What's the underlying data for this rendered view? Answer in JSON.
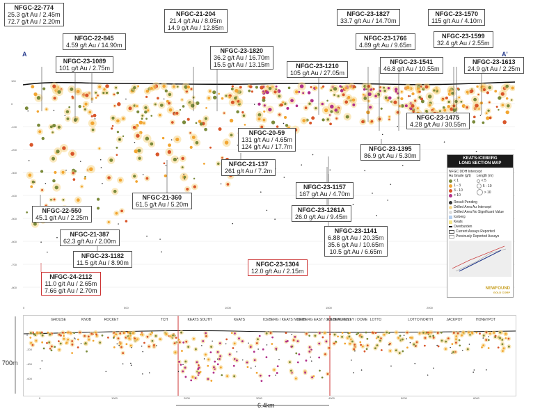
{
  "section_ends": {
    "left": "A",
    "right": "A'"
  },
  "annotations": [
    {
      "id": "NFGC-22-774",
      "lines": [
        "25.3 g/t Au / 2.45m",
        "72.7 g/t Au / 2.20m"
      ]
    },
    {
      "id": "NFGC-22-845",
      "lines": [
        "4.59 g/t Au / 14.90m"
      ]
    },
    {
      "id": "NFGC-23-1089",
      "lines": [
        "101 g/t Au / 2.75m"
      ]
    },
    {
      "id": "NFGC-21-204",
      "lines": [
        "21.4 g/t Au / 8.05m",
        "14.9 g/t Au / 12.85m"
      ]
    },
    {
      "id": "NFGC-23-1820",
      "lines": [
        "36.2 g/t Au / 16.70m",
        "15.5 g/t Au / 13.15m"
      ]
    },
    {
      "id": "NFGC-23-1210",
      "lines": [
        "105 g/t Au / 27.05m"
      ]
    },
    {
      "id": "NFGC-23-1827",
      "lines": [
        "33.7 g/t Au / 14.70m"
      ]
    },
    {
      "id": "NFGC-23-1570",
      "lines": [
        "115 g/t Au / 4.10m"
      ]
    },
    {
      "id": "NFGC-23-1766",
      "lines": [
        "4.89 g/t Au / 9.65m"
      ]
    },
    {
      "id": "NFGC-23-1599",
      "lines": [
        "32.4 g/t Au / 2.55m"
      ]
    },
    {
      "id": "NFGC-23-1541",
      "lines": [
        "46.8 g/t Au / 10.55m"
      ]
    },
    {
      "id": "NFGC-23-1613",
      "lines": [
        "24.9 g/t Au / 2.25m"
      ]
    },
    {
      "id": "NFGC-23-1475",
      "lines": [
        "4.28 g/t Au / 30.55m"
      ]
    },
    {
      "id": "NFGC-20-59",
      "lines": [
        "131 g/t Au / 4.65m",
        "124 g/t Au / 17.7m"
      ]
    },
    {
      "id": "NFGC-23-1395",
      "lines": [
        "86.9 g/t Au / 5.30m"
      ]
    },
    {
      "id": "NFGC-21-137",
      "lines": [
        "261 g/t Au / 7.2m"
      ]
    },
    {
      "id": "NFGC-21-360",
      "lines": [
        "61.5 g/t Au / 5.20m"
      ]
    },
    {
      "id": "NFGC-23-1157",
      "lines": [
        "167 g/t Au / 4.70m"
      ]
    },
    {
      "id": "NFGC-23-1261A",
      "lines": [
        "26.0 g/t Au / 9.45m"
      ]
    },
    {
      "id": "NFGC-22-550",
      "lines": [
        "45.1 g/t Au / 2.25m"
      ]
    },
    {
      "id": "NFGC-21-387",
      "lines": [
        "62.3 g/t Au / 2.00m"
      ]
    },
    {
      "id": "NFGC-23-1141",
      "lines": [
        "6.88 g/t Au / 20.35m",
        "35.6 g/t Au / 10.65m",
        "10.5 g/t Au / 6.65m"
      ]
    },
    {
      "id": "NFGC-23-1182",
      "lines": [
        "11.5 g/t Au / 8.90m"
      ]
    },
    {
      "id": "NFGC-23-1304",
      "lines": [
        "12.0 g/t Au / 2.15m"
      ]
    },
    {
      "id": "NFGC-24-2112",
      "lines": [
        "11.0 g/t Au / 2.65m",
        "7.66 g/t Au / 2.70m"
      ]
    }
  ],
  "legend": {
    "title_1": "KEATS-ICEBERG",
    "title_2": "LONG SECTION MAP",
    "subtitle": "NFGC DDH Intercept",
    "grade_header": "Au Grade (g/t)",
    "length_header": "Length (m)",
    "grades": [
      "< 1",
      "1 - 3",
      "3 - 10",
      "> 10"
    ],
    "lengths": [
      "< 5",
      "5 - 10",
      "> 10"
    ],
    "items": [
      "Result Pending",
      "Drilled Area Au Intercept",
      "Drilled Area No Significant Value",
      "Iceberg",
      "Keats",
      "Overburden",
      "Current Assays Reported",
      "Previously Reported Assays"
    ],
    "brand": "NEWFOUND",
    "brand_sub": "GOLD CORP"
  },
  "elevation_ticks": [
    "100",
    "0",
    "-100",
    "-200",
    "-300",
    "-400",
    "-500",
    "-600",
    "-700",
    "-800"
  ],
  "distance_ticks": [
    "0",
    "500",
    "1000",
    "1500",
    "2000"
  ],
  "lower": {
    "zones": [
      "GROUSE",
      "KNOB",
      "ROCKET",
      "TCH",
      "KEATS SOUTH",
      "KEATS",
      "ICEBERG / KEATS NORTH",
      "ICEBERG EAST / GOLDEN JOINT",
      "ICEBERG ALLEY / DOME",
      "LOTTO",
      "LOTTO NORTH",
      "JACKPOT",
      "HONEYPOT"
    ],
    "x_ticks": [
      "0",
      "1000",
      "2000",
      "3000",
      "4000",
      "5000",
      "6000"
    ],
    "y_ticks": [
      "0",
      "-200",
      "-400",
      "-600"
    ],
    "height_label": "700m",
    "width_label": "6.4km"
  },
  "colors": {
    "low": "#7a8a3a",
    "mid": "#f2a531",
    "high": "#d9562a",
    "vhigh": "#b0308a",
    "halo": "#f7d78a",
    "accent": "#2a3f8f",
    "red_box": "#c33333"
  }
}
